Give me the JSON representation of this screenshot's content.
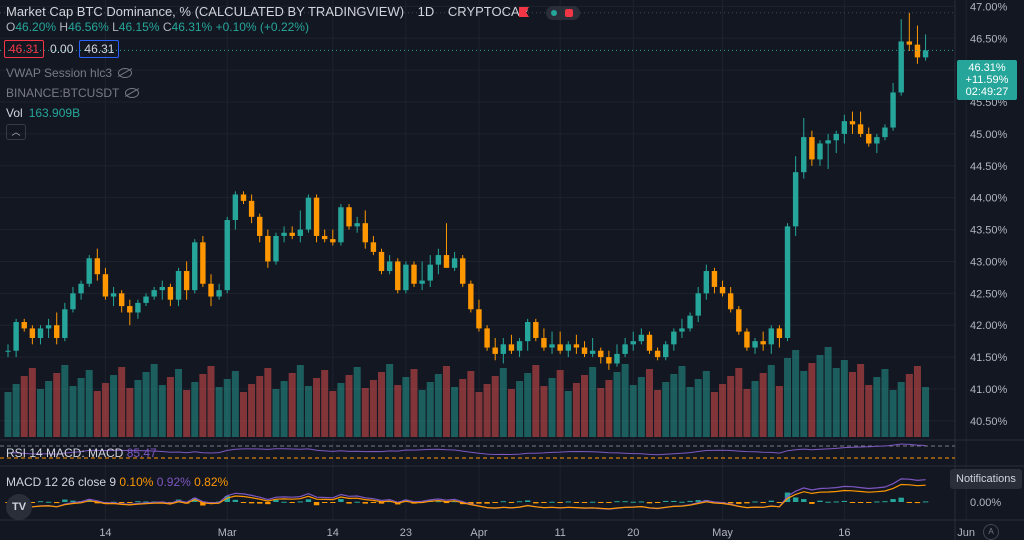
{
  "header": {
    "title": "Market Cap BTC Dominance, % (CALCULATED BY TRADINGVIEW)",
    "interval": "1D",
    "exchange": "CRYPTOCAP",
    "ohlc": {
      "o_label": "O",
      "o": "46.20%",
      "h_label": "H",
      "h": "46.56%",
      "l_label": "L",
      "l": "46.15%",
      "c_label": "C",
      "c": "46.31%",
      "change": "+0.10% (+0.22%)"
    }
  },
  "trade": {
    "sell": "46.31",
    "spread": "0.00",
    "buy": "46.31"
  },
  "indicators": {
    "vwap": "VWAP Session hlc3",
    "binance": "BINANCE:BTCUSDT",
    "vol_label": "Vol",
    "vol_value": "163.909B",
    "rsi_label": "RSI 14 MACD: MACD",
    "rsi_value": "85.47",
    "macd_label": "MACD 12 26 close 9",
    "macd_v1": "0.10%",
    "macd_v2": "0.92%",
    "macd_v3": "0.82%"
  },
  "price_tag": {
    "price": "46.31%",
    "change": "+11.59%",
    "countdown": "02:49:27"
  },
  "notifications_label": "Notifications",
  "colors": {
    "up": "#26a69a",
    "down": "#ff9800",
    "macd_line": "#7e57c2",
    "signal_line": "#ff9800",
    "background": "#131722"
  },
  "chart_data": {
    "type": "candlestick",
    "y_ticks": [
      "47.00%",
      "46.50%",
      "46.00%",
      "45.50%",
      "45.00%",
      "44.50%",
      "44.00%",
      "43.50%",
      "43.00%",
      "42.50%",
      "42.00%",
      "41.50%",
      "41.00%",
      "40.50%"
    ],
    "ylim": [
      40.2,
      47.1
    ],
    "macd_tick": "0.00%",
    "x_ticks": [
      {
        "label": "14",
        "i": 12
      },
      {
        "label": "Mar",
        "i": 27
      },
      {
        "label": "14",
        "i": 40
      },
      {
        "label": "23",
        "i": 49
      },
      {
        "label": "Apr",
        "i": 58
      },
      {
        "label": "11",
        "i": 68
      },
      {
        "label": "20",
        "i": 77
      },
      {
        "label": "May",
        "i": 88
      },
      {
        "label": "16",
        "i": 103
      },
      {
        "label": "Jun",
        "i": 118
      }
    ],
    "candles": [
      [
        41.6,
        41.7,
        41.5,
        41.6
      ],
      [
        41.6,
        42.1,
        41.5,
        42.05
      ],
      [
        42.05,
        42.1,
        41.9,
        41.95
      ],
      [
        41.95,
        42.0,
        41.7,
        41.8
      ],
      [
        41.8,
        42.0,
        41.7,
        41.95
      ],
      [
        41.95,
        42.1,
        41.8,
        42.0
      ],
      [
        42.0,
        42.2,
        41.7,
        41.8
      ],
      [
        41.8,
        42.35,
        41.75,
        42.25
      ],
      [
        42.25,
        42.6,
        42.2,
        42.5
      ],
      [
        42.5,
        42.7,
        42.4,
        42.65
      ],
      [
        42.65,
        43.1,
        42.6,
        43.05
      ],
      [
        43.05,
        43.2,
        42.7,
        42.8
      ],
      [
        42.8,
        42.9,
        42.4,
        42.45
      ],
      [
        42.45,
        42.6,
        42.3,
        42.5
      ],
      [
        42.5,
        42.55,
        42.2,
        42.3
      ],
      [
        42.3,
        42.4,
        42.0,
        42.2
      ],
      [
        42.2,
        42.4,
        42.1,
        42.35
      ],
      [
        42.35,
        42.5,
        42.3,
        42.45
      ],
      [
        42.45,
        42.6,
        42.4,
        42.55
      ],
      [
        42.55,
        42.7,
        42.4,
        42.6
      ],
      [
        42.6,
        42.65,
        42.3,
        42.4
      ],
      [
        42.4,
        42.9,
        42.3,
        42.85
      ],
      [
        42.85,
        43.0,
        42.4,
        42.55
      ],
      [
        42.55,
        43.35,
        42.5,
        43.3
      ],
      [
        43.3,
        43.4,
        42.6,
        42.65
      ],
      [
        42.65,
        42.8,
        42.3,
        42.45
      ],
      [
        42.45,
        42.65,
        42.4,
        42.55
      ],
      [
        42.55,
        43.7,
        42.5,
        43.65
      ],
      [
        43.65,
        44.1,
        43.5,
        44.05
      ],
      [
        44.05,
        44.1,
        43.9,
        43.95
      ],
      [
        43.95,
        44.05,
        43.6,
        43.7
      ],
      [
        43.7,
        43.75,
        43.3,
        43.4
      ],
      [
        43.4,
        43.5,
        42.9,
        43.0
      ],
      [
        43.0,
        43.45,
        42.95,
        43.4
      ],
      [
        43.4,
        43.55,
        43.3,
        43.45
      ],
      [
        43.45,
        43.55,
        43.35,
        43.4
      ],
      [
        43.4,
        43.8,
        43.3,
        43.5
      ],
      [
        43.5,
        44.05,
        43.45,
        44.0
      ],
      [
        44.0,
        44.05,
        43.3,
        43.4
      ],
      [
        43.4,
        43.5,
        43.3,
        43.35
      ],
      [
        43.35,
        43.5,
        43.25,
        43.3
      ],
      [
        43.3,
        43.9,
        43.25,
        43.85
      ],
      [
        43.85,
        43.9,
        43.5,
        43.55
      ],
      [
        43.55,
        43.7,
        43.45,
        43.6
      ],
      [
        43.6,
        43.8,
        43.2,
        43.3
      ],
      [
        43.3,
        43.4,
        43.1,
        43.15
      ],
      [
        43.15,
        43.2,
        42.8,
        42.85
      ],
      [
        42.85,
        43.1,
        42.8,
        43.0
      ],
      [
        43.0,
        43.05,
        42.5,
        42.55
      ],
      [
        42.55,
        43.0,
        42.5,
        42.95
      ],
      [
        42.95,
        43.0,
        42.6,
        42.65
      ],
      [
        42.65,
        43.0,
        42.55,
        42.7
      ],
      [
        42.7,
        43.1,
        42.6,
        42.95
      ],
      [
        42.95,
        43.2,
        42.8,
        43.1
      ],
      [
        43.1,
        43.6,
        42.9,
        42.9
      ],
      [
        42.9,
        43.15,
        42.85,
        43.05
      ],
      [
        43.05,
        43.1,
        42.6,
        42.65
      ],
      [
        42.65,
        42.7,
        42.2,
        42.25
      ],
      [
        42.25,
        42.4,
        41.9,
        41.95
      ],
      [
        41.95,
        42.0,
        41.6,
        41.65
      ],
      [
        41.65,
        41.8,
        41.45,
        41.55
      ],
      [
        41.55,
        41.8,
        41.4,
        41.7
      ],
      [
        41.7,
        41.85,
        41.55,
        41.6
      ],
      [
        41.6,
        41.8,
        41.5,
        41.75
      ],
      [
        41.75,
        42.1,
        41.6,
        42.05
      ],
      [
        42.05,
        42.1,
        41.75,
        41.8
      ],
      [
        41.8,
        41.95,
        41.6,
        41.65
      ],
      [
        41.65,
        41.9,
        41.55,
        41.7
      ],
      [
        41.7,
        41.9,
        41.55,
        41.6
      ],
      [
        41.6,
        41.75,
        41.5,
        41.7
      ],
      [
        41.7,
        41.85,
        41.55,
        41.65
      ],
      [
        41.65,
        41.75,
        41.5,
        41.55
      ],
      [
        41.55,
        41.8,
        41.5,
        41.6
      ],
      [
        41.6,
        41.65,
        41.4,
        41.5
      ],
      [
        41.5,
        41.6,
        41.3,
        41.4
      ],
      [
        41.4,
        41.7,
        41.35,
        41.55
      ],
      [
        41.55,
        41.8,
        41.5,
        41.7
      ],
      [
        41.7,
        41.9,
        41.6,
        41.75
      ],
      [
        41.75,
        41.95,
        41.7,
        41.85
      ],
      [
        41.85,
        41.9,
        41.55,
        41.6
      ],
      [
        41.6,
        41.65,
        41.45,
        41.5
      ],
      [
        41.5,
        41.75,
        41.45,
        41.7
      ],
      [
        41.7,
        41.95,
        41.6,
        41.9
      ],
      [
        41.9,
        42.1,
        41.8,
        41.95
      ],
      [
        41.95,
        42.2,
        41.9,
        42.15
      ],
      [
        42.15,
        42.6,
        42.05,
        42.5
      ],
      [
        42.5,
        42.95,
        42.4,
        42.85
      ],
      [
        42.85,
        42.9,
        42.5,
        42.6
      ],
      [
        42.6,
        42.7,
        42.45,
        42.5
      ],
      [
        42.5,
        42.6,
        42.2,
        42.25
      ],
      [
        42.25,
        42.3,
        41.85,
        41.9
      ],
      [
        41.9,
        41.95,
        41.6,
        41.65
      ],
      [
        41.65,
        41.8,
        41.55,
        41.75
      ],
      [
        41.75,
        41.9,
        41.6,
        41.7
      ],
      [
        41.7,
        42.0,
        41.55,
        41.95
      ],
      [
        41.95,
        42.0,
        41.65,
        41.8
      ],
      [
        41.8,
        43.6,
        41.75,
        43.55
      ],
      [
        43.55,
        44.65,
        43.4,
        44.4
      ],
      [
        44.4,
        45.25,
        44.3,
        44.95
      ],
      [
        44.95,
        45.05,
        44.5,
        44.6
      ],
      [
        44.6,
        44.9,
        44.5,
        44.85
      ],
      [
        44.85,
        45.0,
        44.45,
        44.9
      ],
      [
        44.9,
        45.05,
        44.7,
        45.0
      ],
      [
        45.0,
        45.3,
        44.85,
        45.2
      ],
      [
        45.2,
        45.35,
        45.0,
        45.15
      ],
      [
        45.15,
        45.35,
        44.95,
        45.0
      ],
      [
        45.0,
        45.1,
        44.8,
        44.85
      ],
      [
        44.85,
        45.0,
        44.7,
        44.95
      ],
      [
        44.95,
        45.15,
        44.9,
        45.1
      ],
      [
        45.1,
        45.8,
        45.05,
        45.65
      ],
      [
        45.65,
        46.8,
        45.6,
        46.45
      ],
      [
        46.45,
        46.9,
        46.3,
        46.4
      ],
      [
        46.4,
        46.7,
        46.1,
        46.2
      ],
      [
        46.2,
        46.56,
        46.15,
        46.31
      ]
    ]
  }
}
